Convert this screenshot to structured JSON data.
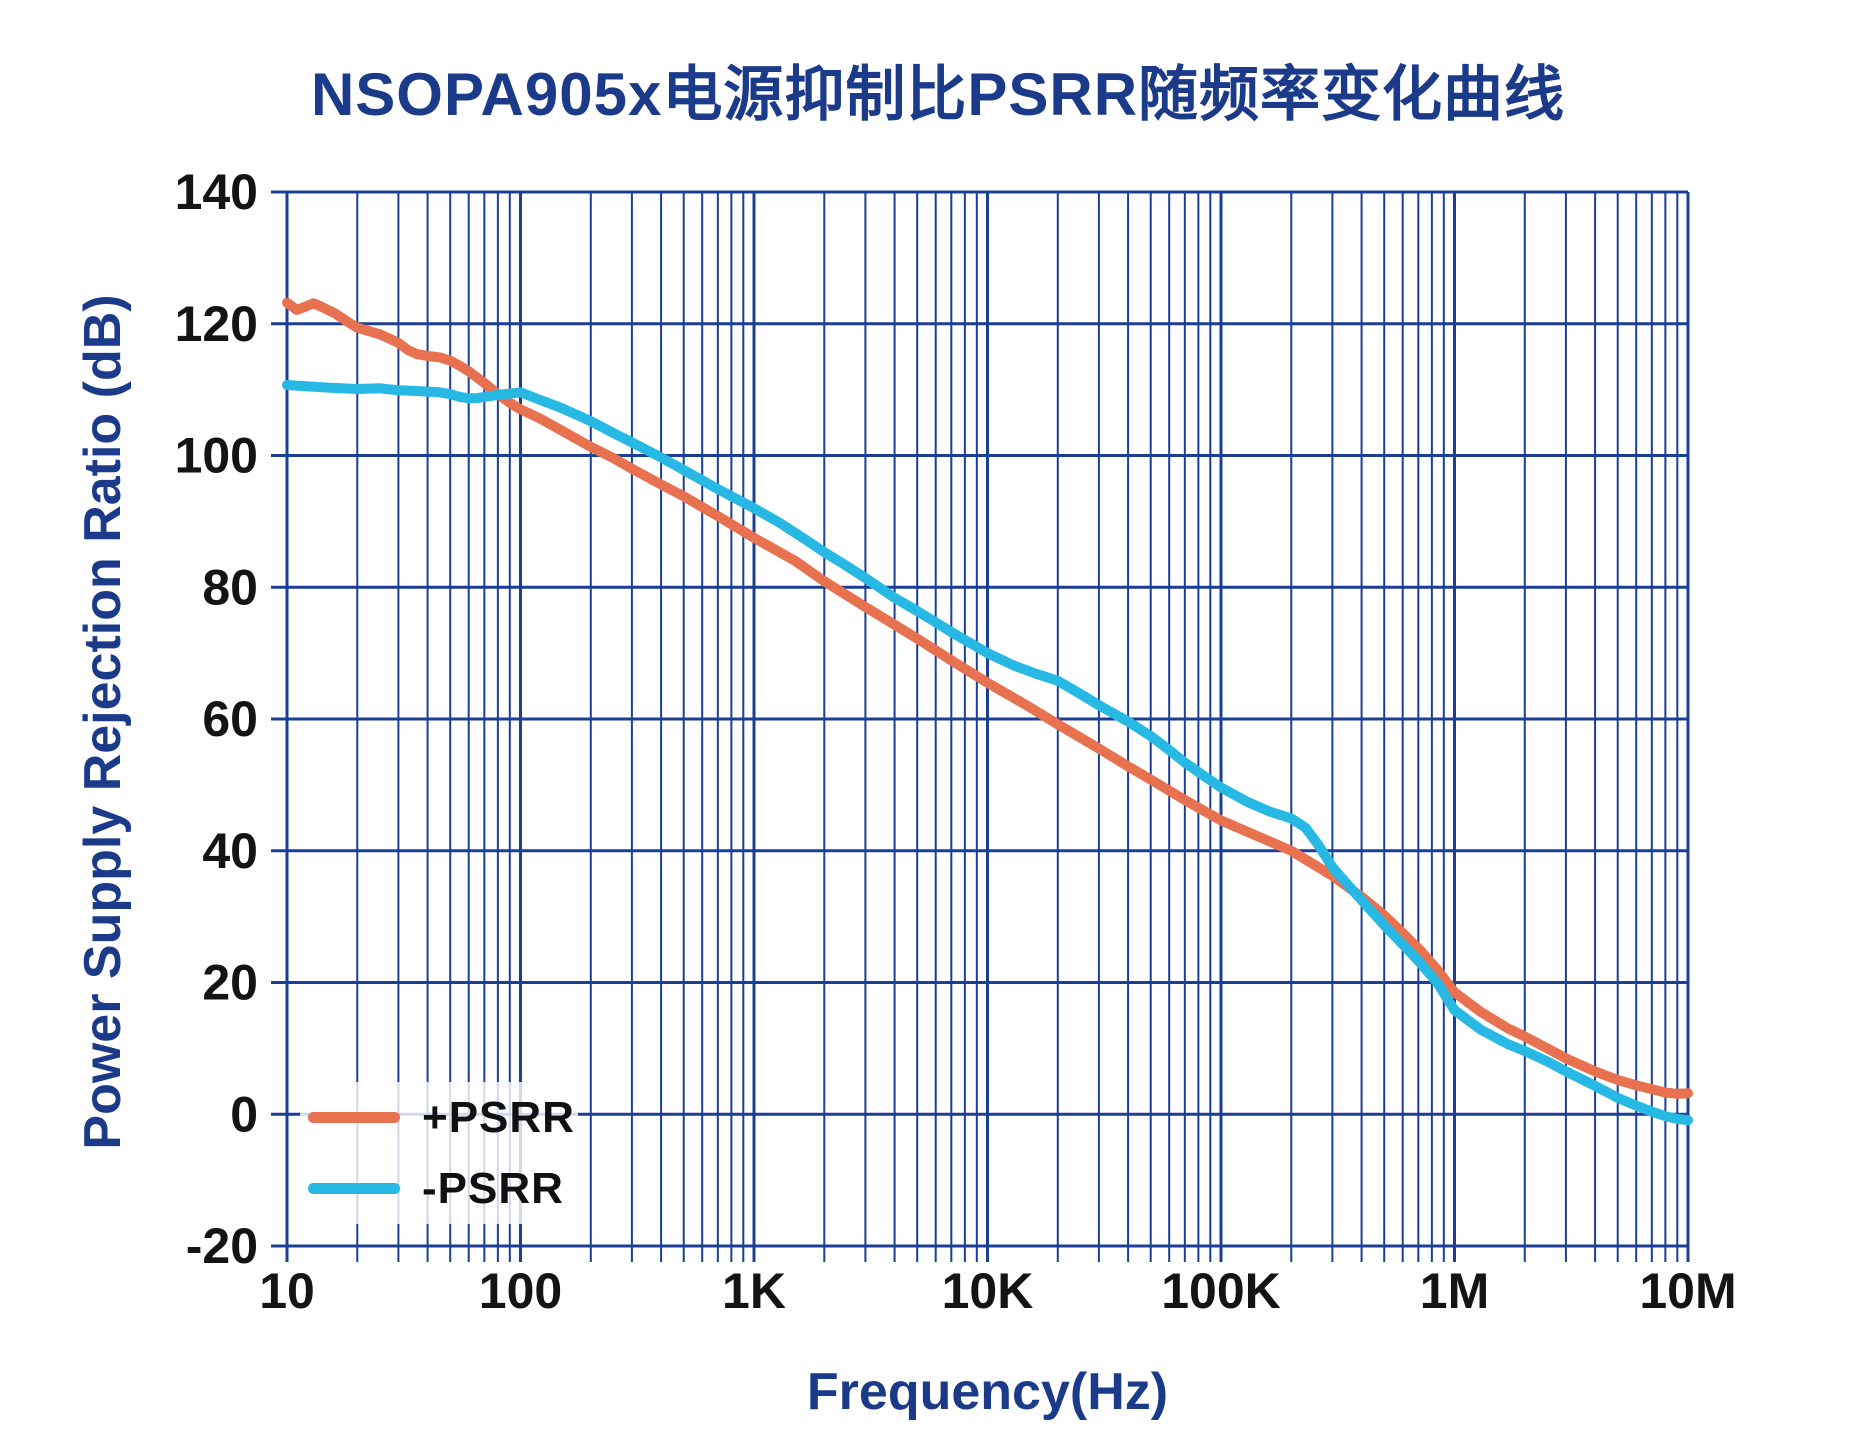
{
  "title": "NSOPA905x电源抑制比PSRR随频率变化曲线",
  "colors": {
    "accent_plus_psrr": "#E8714F",
    "accent_minus_psrr": "#27B8E4",
    "grid": "#1B3F96",
    "heading_text": "#1B3B8A",
    "tick_text": "#141414",
    "legend_background": "rgba(255,255,255,0.8)"
  },
  "chart_data": {
    "type": "line",
    "title": "NSOPA905x电源抑制比PSRR随频率变化曲线",
    "xlabel": "Frequency(Hz)",
    "ylabel": "Power Supply Rejection Ratio (dB)",
    "x_scale": "log",
    "xlim": [
      10,
      10000000
    ],
    "ylim": [
      -20,
      140
    ],
    "y_tick_step": 20,
    "y_tick_labels": [
      "140",
      "120",
      "100",
      "80",
      "60",
      "40",
      "20",
      "0",
      "-20"
    ],
    "x_ticks": [
      {
        "value": 10,
        "label": "10"
      },
      {
        "value": 100,
        "label": "100"
      },
      {
        "value": 1000,
        "label": "1K"
      },
      {
        "value": 10000,
        "label": "10K"
      },
      {
        "value": 100000,
        "label": "100K"
      },
      {
        "value": 1000000,
        "label": "1M"
      },
      {
        "value": 10000000,
        "label": "10M"
      }
    ],
    "grid": "log-x minor and major verticals, major horizontals every 20 dB",
    "legend_position": "bottom-left",
    "series": [
      {
        "name": "+PSRR",
        "color": "#E8714F",
        "points": [
          [
            10,
            123.2
          ],
          [
            11,
            122.1
          ],
          [
            12,
            122.6
          ],
          [
            13,
            123.1
          ],
          [
            14,
            122.6
          ],
          [
            16,
            121.6
          ],
          [
            18,
            120.4
          ],
          [
            20,
            119.4
          ],
          [
            25,
            118.4
          ],
          [
            28,
            117.6
          ],
          [
            30,
            117.1
          ],
          [
            33,
            116.0
          ],
          [
            36,
            115.4
          ],
          [
            40,
            115.1
          ],
          [
            45,
            114.9
          ],
          [
            50,
            114.4
          ],
          [
            55,
            113.6
          ],
          [
            60,
            112.8
          ],
          [
            70,
            111.0
          ],
          [
            80,
            109.3
          ],
          [
            90,
            108.0
          ],
          [
            100,
            107.0
          ],
          [
            120,
            105.7
          ],
          [
            150,
            103.8
          ],
          [
            200,
            101.3
          ],
          [
            250,
            99.6
          ],
          [
            300,
            98.0
          ],
          [
            400,
            95.6
          ],
          [
            500,
            93.8
          ],
          [
            700,
            90.8
          ],
          [
            1000,
            87.5
          ],
          [
            1500,
            84.0
          ],
          [
            2000,
            80.9
          ],
          [
            3000,
            77.0
          ],
          [
            4000,
            74.3
          ],
          [
            5000,
            72.2
          ],
          [
            7000,
            68.9
          ],
          [
            10000,
            65.5
          ],
          [
            15000,
            61.9
          ],
          [
            20000,
            59.2
          ],
          [
            30000,
            55.5
          ],
          [
            40000,
            52.8
          ],
          [
            50000,
            50.8
          ],
          [
            70000,
            47.7
          ],
          [
            100000,
            44.6
          ],
          [
            150000,
            41.9
          ],
          [
            200000,
            40.0
          ],
          [
            300000,
            36.2
          ],
          [
            400000,
            33.0
          ],
          [
            500000,
            30.2
          ],
          [
            700000,
            25.2
          ],
          [
            850000,
            21.8
          ],
          [
            1000000,
            18.5
          ],
          [
            1300000,
            15.5
          ],
          [
            1700000,
            13.0
          ],
          [
            2000000,
            11.8
          ],
          [
            2500000,
            10.0
          ],
          [
            3000000,
            8.5
          ],
          [
            4000000,
            6.5
          ],
          [
            5000000,
            5.2
          ],
          [
            6000000,
            4.4
          ],
          [
            7000000,
            3.8
          ],
          [
            8000000,
            3.3
          ],
          [
            9000000,
            3.1
          ],
          [
            10000000,
            3.2
          ]
        ]
      },
      {
        "name": "-PSRR",
        "color": "#27B8E4",
        "points": [
          [
            10,
            110.7
          ],
          [
            12,
            110.5
          ],
          [
            15,
            110.3
          ],
          [
            20,
            110.1
          ],
          [
            25,
            110.2
          ],
          [
            30,
            109.9
          ],
          [
            35,
            109.8
          ],
          [
            40,
            109.7
          ],
          [
            45,
            109.6
          ],
          [
            50,
            109.3
          ],
          [
            55,
            108.9
          ],
          [
            60,
            108.7
          ],
          [
            65,
            108.7
          ],
          [
            70,
            108.9
          ],
          [
            80,
            109.2
          ],
          [
            90,
            109.4
          ],
          [
            100,
            109.6
          ],
          [
            120,
            108.5
          ],
          [
            150,
            107.2
          ],
          [
            200,
            105.2
          ],
          [
            250,
            103.4
          ],
          [
            300,
            102.0
          ],
          [
            400,
            99.7
          ],
          [
            500,
            97.8
          ],
          [
            700,
            94.9
          ],
          [
            1000,
            92.0
          ],
          [
            1300,
            89.7
          ],
          [
            1700,
            87.0
          ],
          [
            2000,
            85.3
          ],
          [
            2400,
            83.6
          ],
          [
            3000,
            81.4
          ],
          [
            4000,
            78.4
          ],
          [
            5000,
            76.4
          ],
          [
            7000,
            73.2
          ],
          [
            10000,
            70.0
          ],
          [
            13000,
            68.1
          ],
          [
            16000,
            66.9
          ],
          [
            20000,
            65.8
          ],
          [
            25000,
            63.8
          ],
          [
            30000,
            62.1
          ],
          [
            40000,
            59.6
          ],
          [
            50000,
            57.4
          ],
          [
            60000,
            55.3
          ],
          [
            70000,
            53.4
          ],
          [
            85000,
            51.3
          ],
          [
            100000,
            49.6
          ],
          [
            130000,
            47.4
          ],
          [
            160000,
            46.0
          ],
          [
            200000,
            44.9
          ],
          [
            230000,
            43.5
          ],
          [
            260000,
            41.0
          ],
          [
            300000,
            37.5
          ],
          [
            350000,
            34.8
          ],
          [
            400000,
            32.5
          ],
          [
            500000,
            28.7
          ],
          [
            600000,
            25.8
          ],
          [
            700000,
            23.3
          ],
          [
            850000,
            19.8
          ],
          [
            1000000,
            15.8
          ],
          [
            1300000,
            12.8
          ],
          [
            1700000,
            10.6
          ],
          [
            2000000,
            9.6
          ],
          [
            2500000,
            8.0
          ],
          [
            3000000,
            6.5
          ],
          [
            4000000,
            4.3
          ],
          [
            5000000,
            2.5
          ],
          [
            6000000,
            1.3
          ],
          [
            7000000,
            0.4
          ],
          [
            8000000,
            -0.3
          ],
          [
            9000000,
            -0.7
          ],
          [
            10000000,
            -0.9
          ]
        ]
      }
    ]
  }
}
